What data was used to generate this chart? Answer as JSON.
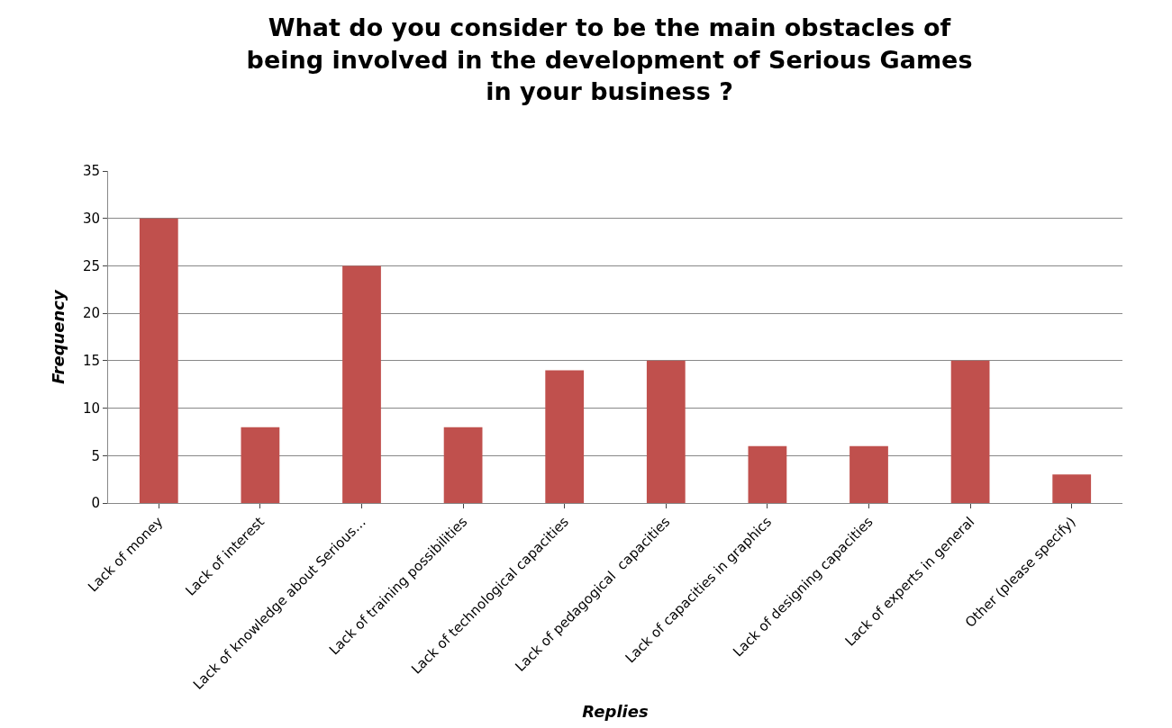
{
  "chart_data": {
    "type": "bar",
    "title": "What do you consider to be the main obstacles of being involved in the development of Serious Games in your business ?",
    "xlabel": "Replies",
    "ylabel": "Frequency",
    "categories": [
      "Lack of money",
      "Lack of interest",
      "Lack of knowledge about Serious…",
      "Lack of training possibilities",
      "Lack of technological capacities",
      "Lack of pedagogical  capacities",
      "Lack of capacities in graphics",
      "Lack of designing capacities",
      "Lack of experts in general",
      "Other (please specify)"
    ],
    "values": [
      30,
      8,
      25,
      8,
      14,
      15,
      6,
      6,
      15,
      3
    ],
    "color": "#c0504d",
    "ylim": [
      0,
      35
    ],
    "yticks": [
      0,
      5,
      10,
      15,
      20,
      25,
      30,
      35
    ],
    "grid": "y",
    "legend": false
  }
}
